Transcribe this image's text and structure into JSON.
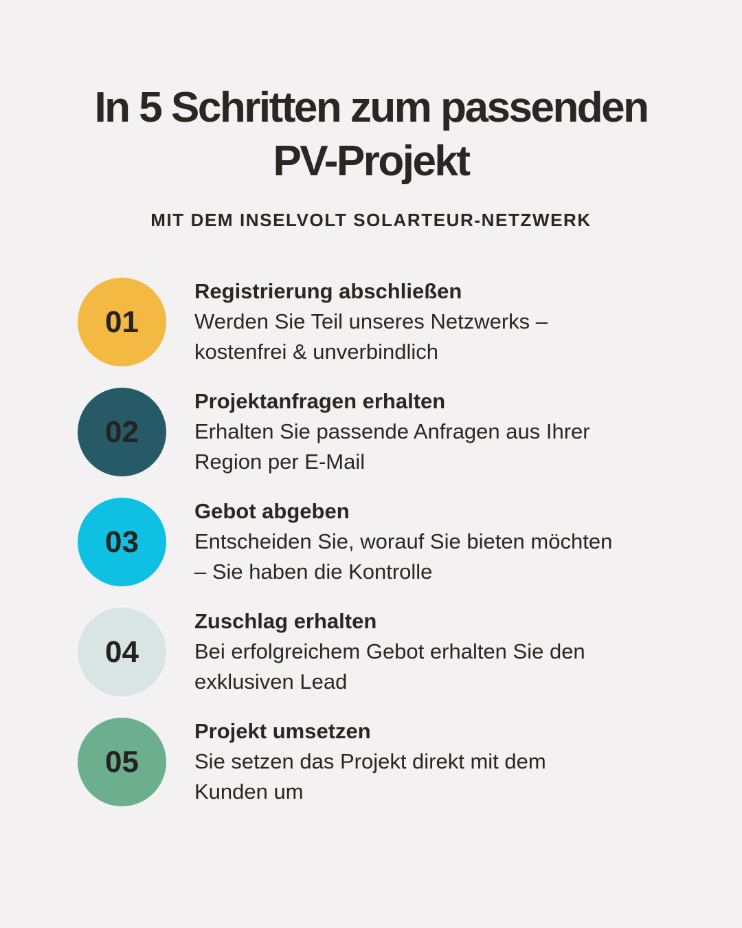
{
  "header": {
    "title_line1": "In 5 Schritten zum passenden",
    "title_line2": "PV-Projekt",
    "subtitle": "MIT DEM INSELVOLT SOLARTEUR-NETZWERK"
  },
  "steps": [
    {
      "number": "01",
      "color": "#f3b942",
      "title": "Registrierung abschließen",
      "desc_line1": "Werden Sie Teil unseres Netzwerks –",
      "desc_line2": "kostenfrei & unverbindlich"
    },
    {
      "number": "02",
      "color": "#255a66",
      "title": "Projektanfragen erhalten",
      "desc_line1": "Erhalten Sie passende Anfragen aus Ihrer",
      "desc_line2": "Region per E-Mail"
    },
    {
      "number": "03",
      "color": "#0ec1e2",
      "title": "Gebot abgeben",
      "desc_line1": "Entscheiden Sie, worauf Sie bieten möchten",
      "desc_line2": "– Sie haben die Kontrolle"
    },
    {
      "number": "04",
      "color": "#d8e5e4",
      "title": "Zuschlag erhalten",
      "desc_line1": "Bei erfolgreichem Gebot erhalten Sie den",
      "desc_line2": "exklusiven Lead"
    },
    {
      "number": "05",
      "color": "#6caf8f",
      "title": "Projekt umsetzen",
      "desc_line1": "Sie setzen das Projekt direkt mit dem",
      "desc_line2": "Kunden um"
    }
  ]
}
